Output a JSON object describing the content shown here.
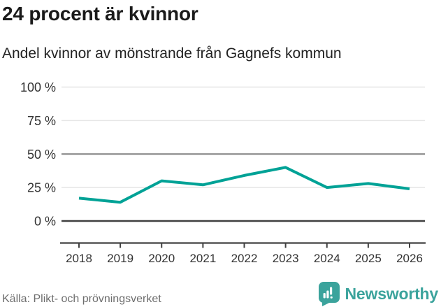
{
  "header": {
    "title": "24 procent är kvinnor",
    "subtitle": "Andel kvinnor av mönstrande från Gagnefs kommun"
  },
  "chart_data": {
    "type": "line",
    "title": "24 procent är kvinnor",
    "subtitle": "Andel kvinnor av mönstrande från Gagnefs kommun",
    "x": [
      "2018",
      "2019",
      "2020",
      "2021",
      "2022",
      "2023",
      "2024",
      "2025",
      "2026"
    ],
    "series": [
      {
        "name": "Andel kvinnor av mönstrande från Gagnefs kommun",
        "color": "#00a296",
        "values": [
          17,
          14,
          30,
          27,
          34,
          40,
          25,
          28,
          24
        ]
      }
    ],
    "unit": "%",
    "ylim": [
      0,
      100
    ],
    "yticks": [
      0,
      25,
      50,
      75,
      100
    ],
    "ytick_suffix": " %",
    "grid": true,
    "emphasized_gridline": 50,
    "baseline_gridline": 0,
    "legend": "none"
  },
  "footer": {
    "source": "Källa: Plikt- och prövningsverket",
    "brand": "Newsworthy",
    "brand_icon": "newsworthy-badge-icon"
  },
  "colors": {
    "line": "#00a296",
    "grid_light": "#e6e6e6",
    "grid_mid": "#808080",
    "axis_dark": "#404040",
    "title_text": "#1a1a1a",
    "axis_text": "#333333",
    "muted_text": "#6e6e6e",
    "brand_teal": "#3ba39c"
  }
}
